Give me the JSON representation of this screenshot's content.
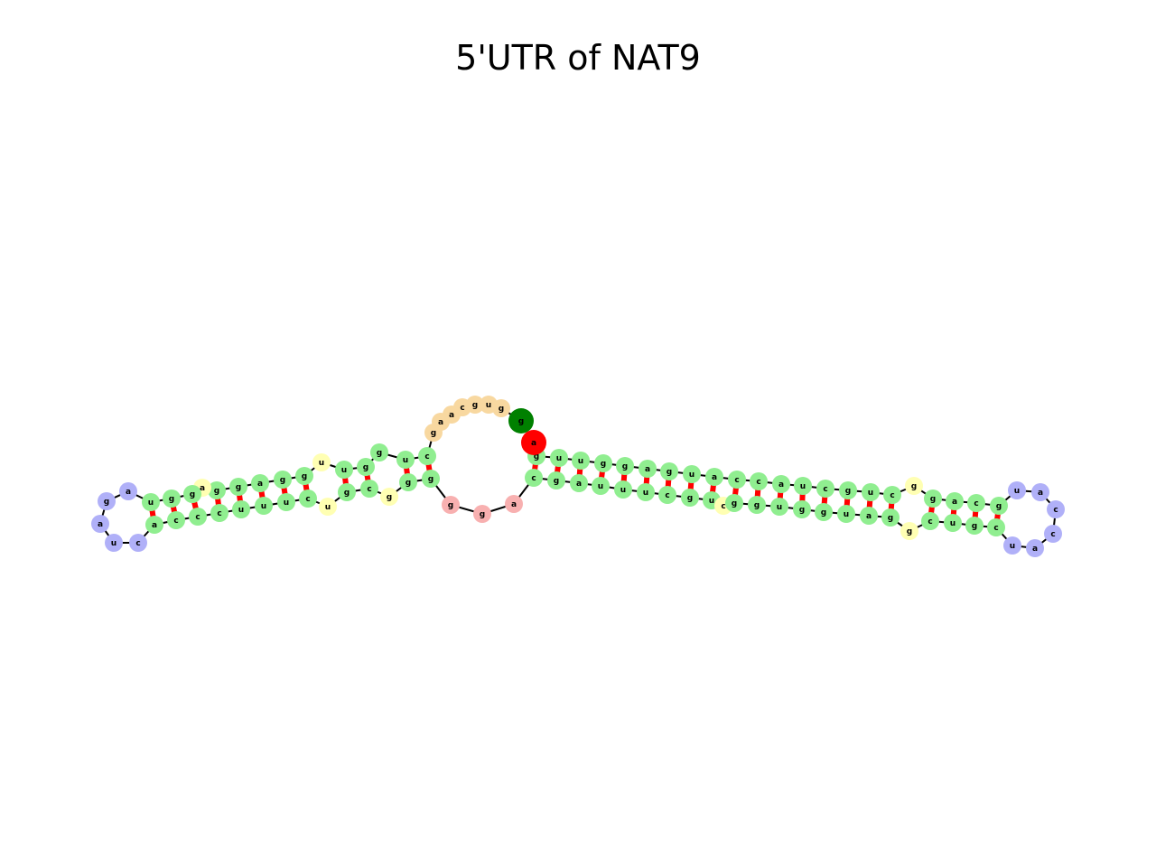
{
  "title": "5'UTR of NAT9",
  "colors": {
    "stem": "#90ee90",
    "unpaired": "#ffffb3",
    "hairpin_loop": "#b0b0f8",
    "multiloop": "#f8d8a0",
    "junction": "#f8b0b0",
    "start_marker": "#008000",
    "end_marker": "#ff0000",
    "pair_bond": "#ff0000",
    "backbone": "#000000"
  },
  "legend_of_roles": [
    "stem",
    "unpaired",
    "hairpin_loop",
    "multiloop",
    "junction",
    "start_marker",
    "end_marker"
  ],
  "segments": {
    "five_prime_multiloop": [
      "g",
      "g",
      "u",
      "g",
      "c",
      "a",
      "a",
      "g"
    ],
    "left_stem_outer_top": [
      "c",
      "u",
      "g"
    ],
    "left_stem_inner_top": [
      "g",
      "u"
    ],
    "left_bulge_top": [
      "u"
    ],
    "left_stem_mid_top": [
      "g",
      "g",
      "a",
      "g",
      "g"
    ],
    "left_unpaired_top": [
      "a"
    ],
    "left_stem_tip_top": [
      "g",
      "g",
      "u"
    ],
    "left_hairpin_loop": [
      "a",
      "g",
      "a",
      "u",
      "c"
    ],
    "left_stem_tip_bottom": [
      "a",
      "c",
      "c"
    ],
    "left_stem_mid_bottom": [
      "c",
      "u",
      "u",
      "u",
      "c"
    ],
    "left_unpaired_bottom_1": [
      "u"
    ],
    "left_stem_inner_bottom": [
      "g",
      "c"
    ],
    "left_unpaired_bottom_2": [
      "g"
    ],
    "left_stem_outer_bottom": [
      "g",
      "g"
    ],
    "junction_loop": [
      "g",
      "g",
      "a"
    ],
    "right_stem_outer_bottom": [
      "c",
      "g",
      "a",
      "u",
      "u",
      "u",
      "c",
      "g",
      "u"
    ],
    "right_unpaired_bottom_1": [
      "c"
    ],
    "right_stem_mid_bottom": [
      "g",
      "g",
      "u",
      "g",
      "g",
      "u",
      "a",
      "g"
    ],
    "right_unpaired_bottom_2": [
      "g"
    ],
    "right_stem_tip_bottom": [
      "c",
      "u",
      "g",
      "c"
    ],
    "right_hairpin_loop": [
      "u",
      "a",
      "c",
      "c",
      "a",
      "u"
    ],
    "right_stem_tip_top": [
      "g",
      "c",
      "a",
      "g"
    ],
    "right_unpaired_top": [
      "g"
    ],
    "right_stem_mid_top": [
      "c",
      "u",
      "g",
      "c",
      "u",
      "a",
      "c",
      "c"
    ],
    "right_stem_outer_top": [
      "a",
      "u",
      "g",
      "a",
      "g",
      "g",
      "u",
      "u",
      "g"
    ],
    "three_prime_end": [
      "a"
    ]
  }
}
